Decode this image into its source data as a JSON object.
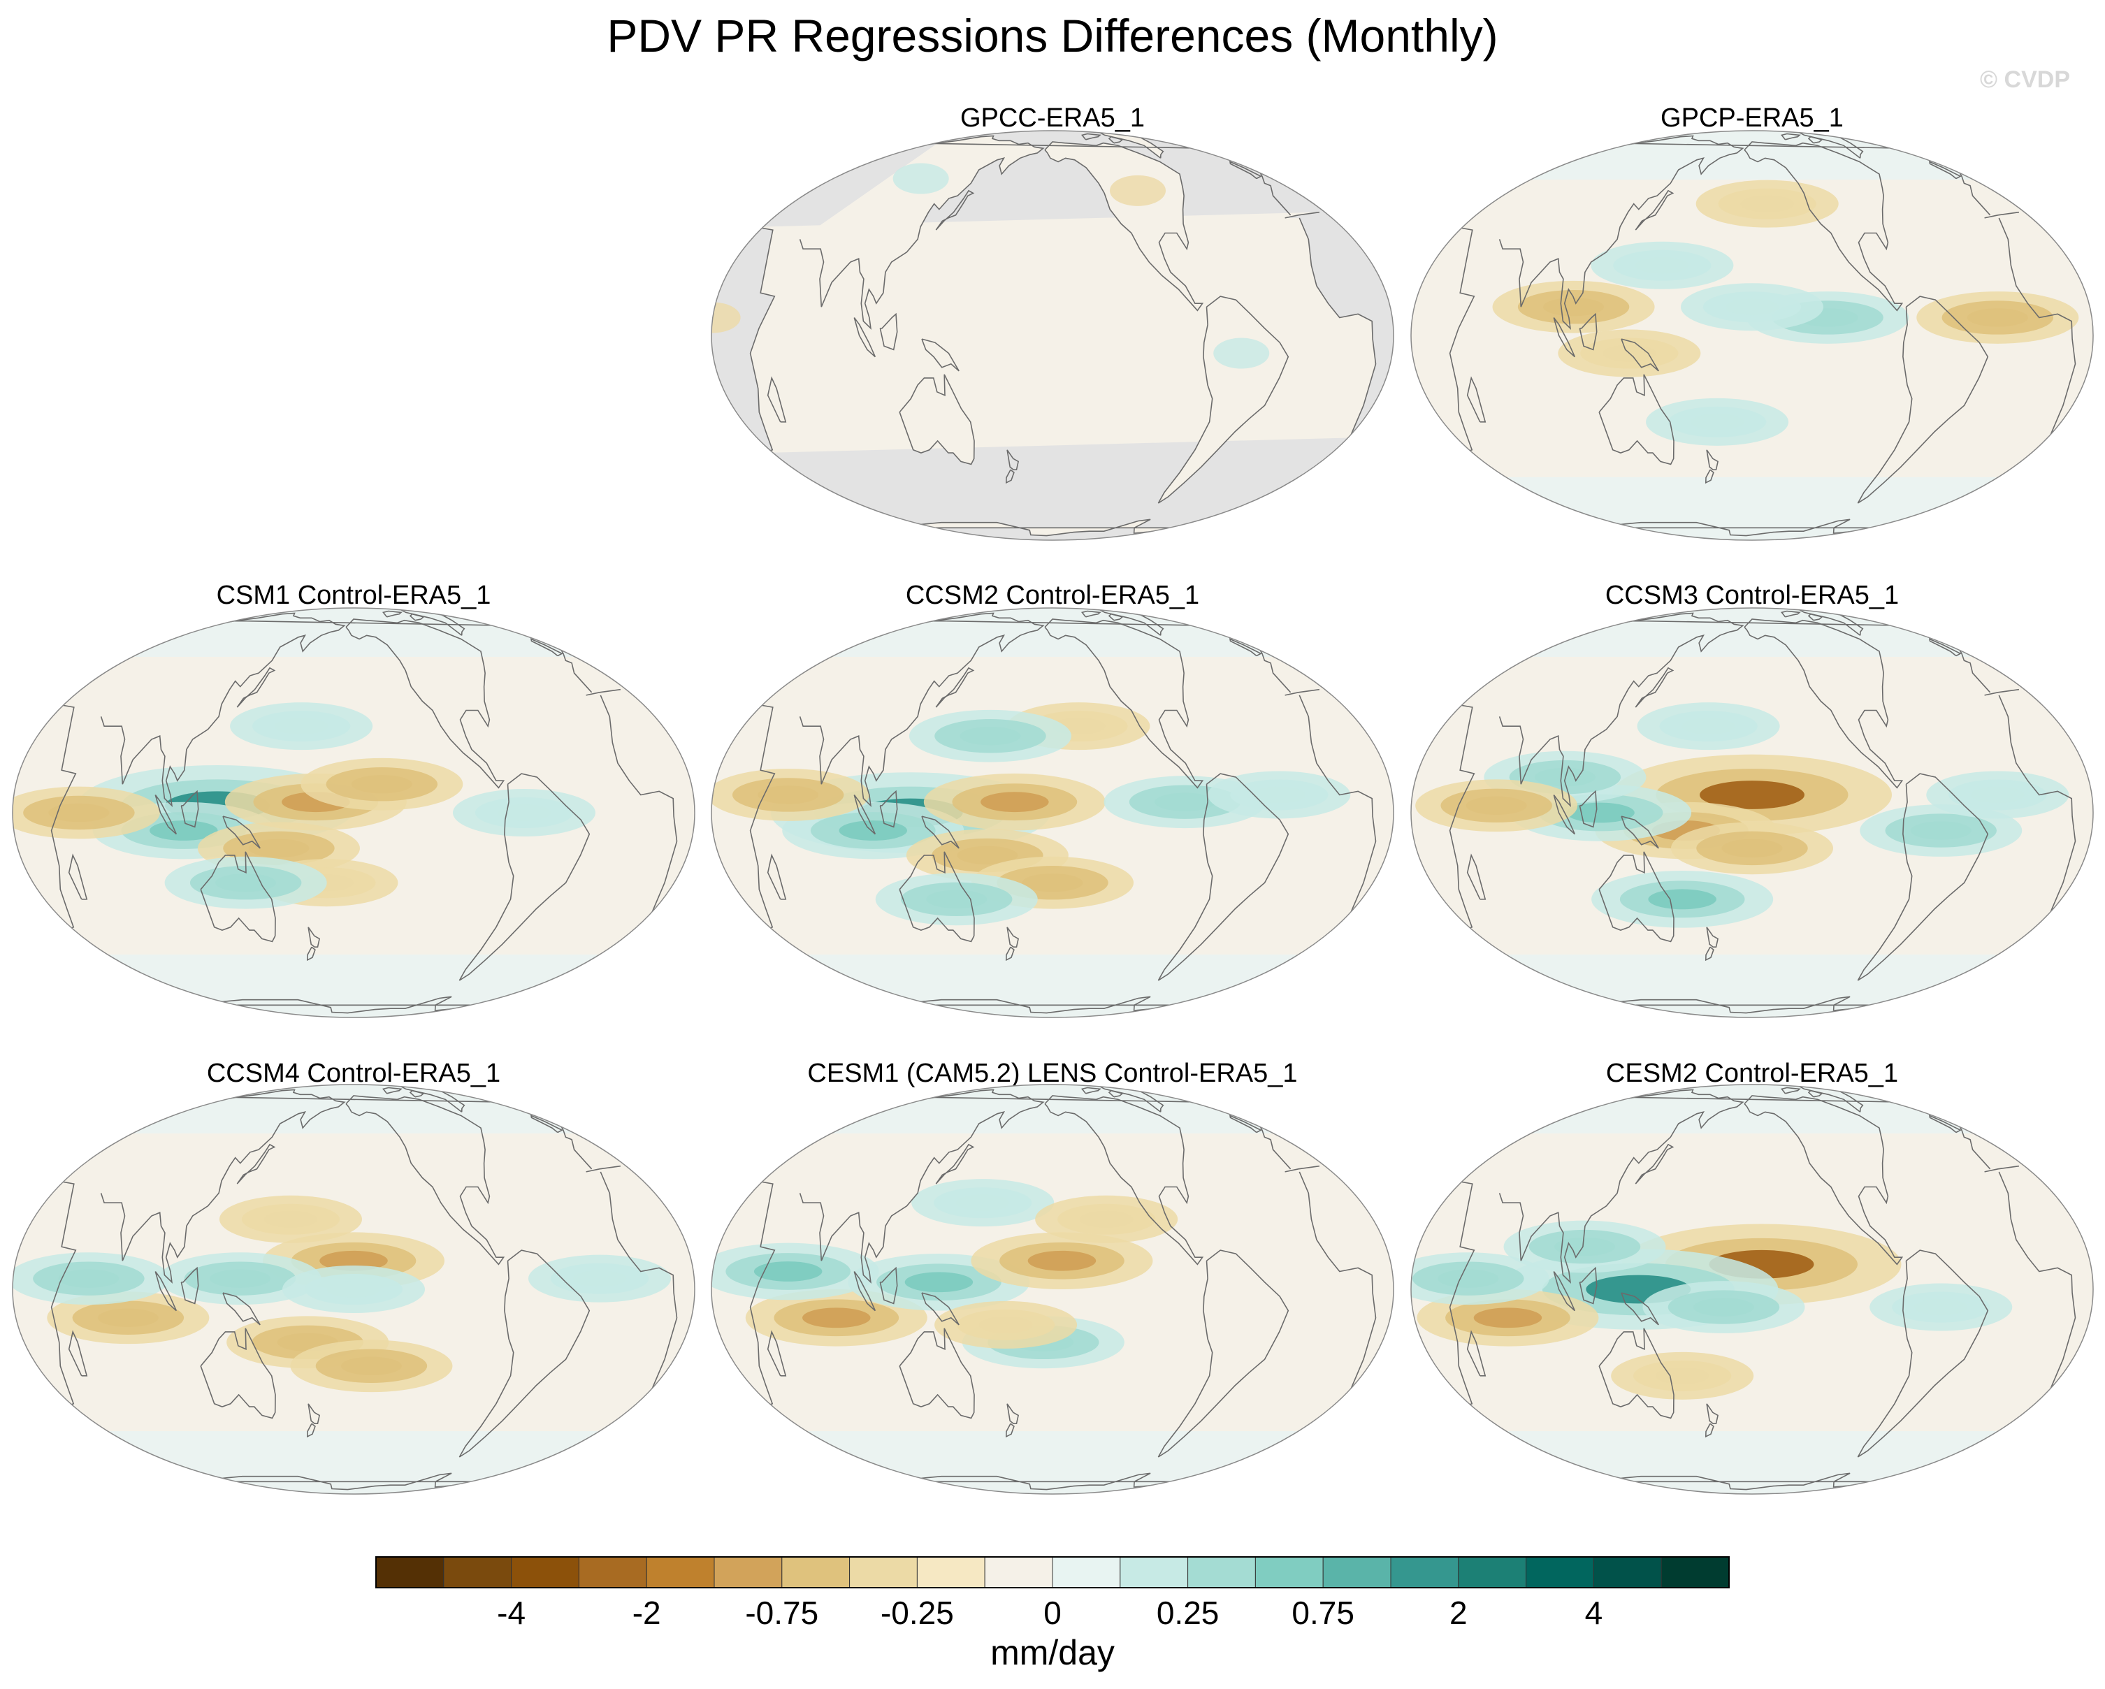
{
  "title": "PDV PR Regressions Differences (Monthly)",
  "watermark": "© CVDP",
  "colorbar": {
    "units": "mm/day",
    "tick_labels": [
      "-4",
      "-2",
      "-0.75",
      "-0.25",
      "0",
      "0.25",
      "0.75",
      "2",
      "4"
    ],
    "colors": [
      "#543005",
      "#7a4a0d",
      "#8c510a",
      "#a86b22",
      "#bf812d",
      "#d2a35a",
      "#dfc27d",
      "#ecdaa6",
      "#f6e8c3",
      "#f5f1e8",
      "#e8f4f2",
      "#c7eae5",
      "#a4dcd3",
      "#80cdc1",
      "#5ab4a9",
      "#35978f",
      "#1c8075",
      "#01665e",
      "#01524a",
      "#003c30"
    ]
  },
  "chart_data": [
    {
      "type": "heatmap",
      "title": "GPCC-ERA5_1",
      "land_only": true,
      "patterns": [
        {
          "lon": 300,
          "lat": -5,
          "value": 0.25
        },
        {
          "lon": 20,
          "lat": 5,
          "value": -0.25
        },
        {
          "lon": 100,
          "lat": 50,
          "value": 0.25
        },
        {
          "lon": 260,
          "lat": 45,
          "value": -0.25
        }
      ]
    },
    {
      "type": "heatmap",
      "title": "GPCP-ERA5_1",
      "patterns": [
        {
          "lon": 240,
          "lat": 5,
          "value": 0.5
        },
        {
          "lon": 200,
          "lat": 8,
          "value": 0.25
        },
        {
          "lon": 330,
          "lat": 5,
          "value": -0.5
        },
        {
          "lon": 105,
          "lat": 8,
          "value": -0.5
        },
        {
          "lon": 150,
          "lat": 20,
          "value": 0.25
        },
        {
          "lon": 210,
          "lat": 40,
          "value": -0.25
        },
        {
          "lon": 180,
          "lat": -25,
          "value": 0.25
        },
        {
          "lon": 135,
          "lat": -5,
          "value": -0.25
        }
      ]
    },
    {
      "type": "heatmap",
      "title": "CSM1 Control-ERA5_1",
      "patterns": [
        {
          "lon": 128,
          "lat": 2,
          "value": 2
        },
        {
          "lon": 110,
          "lat": -5,
          "value": 0.75
        },
        {
          "lon": 180,
          "lat": 3,
          "value": -0.75
        },
        {
          "lon": 215,
          "lat": 8,
          "value": -0.5
        },
        {
          "lon": 160,
          "lat": -10,
          "value": -0.5
        },
        {
          "lon": 185,
          "lat": -20,
          "value": -0.25
        },
        {
          "lon": 55,
          "lat": 0,
          "value": -0.5
        },
        {
          "lon": 140,
          "lat": -20,
          "value": 0.5
        },
        {
          "lon": 170,
          "lat": 25,
          "value": 0.25
        },
        {
          "lon": 290,
          "lat": 0,
          "value": 0.25
        }
      ]
    },
    {
      "type": "heatmap",
      "title": "CCSM2 Control-ERA5_1",
      "patterns": [
        {
          "lon": 125,
          "lat": 0,
          "value": 2
        },
        {
          "lon": 105,
          "lat": -5,
          "value": 0.75
        },
        {
          "lon": 180,
          "lat": 3,
          "value": -0.75
        },
        {
          "lon": 165,
          "lat": -12,
          "value": -0.5
        },
        {
          "lon": 200,
          "lat": -20,
          "value": -0.5
        },
        {
          "lon": 215,
          "lat": 25,
          "value": -0.25
        },
        {
          "lon": 60,
          "lat": 5,
          "value": -0.5
        },
        {
          "lon": 145,
          "lat": -25,
          "value": 0.5
        },
        {
          "lon": 165,
          "lat": 22,
          "value": 0.5
        },
        {
          "lon": 270,
          "lat": 3,
          "value": 0.5
        },
        {
          "lon": 320,
          "lat": 5,
          "value": 0.25
        }
      ]
    },
    {
      "type": "heatmap",
      "title": "CCSM3 Control-ERA5_1",
      "patterns": [
        {
          "lon": 200,
          "lat": 5,
          "value": -2
        },
        {
          "lon": 165,
          "lat": -5,
          "value": -0.75
        },
        {
          "lon": 200,
          "lat": -10,
          "value": -0.5
        },
        {
          "lon": 120,
          "lat": 0,
          "value": 0.75
        },
        {
          "lon": 100,
          "lat": 10,
          "value": 0.5
        },
        {
          "lon": 160,
          "lat": -25,
          "value": 0.75
        },
        {
          "lon": 65,
          "lat": 2,
          "value": -0.5
        },
        {
          "lon": 175,
          "lat": 25,
          "value": 0.25
        },
        {
          "lon": 300,
          "lat": -5,
          "value": 0.5
        },
        {
          "lon": 330,
          "lat": 5,
          "value": 0.25
        }
      ]
    },
    {
      "type": "heatmap",
      "title": "CCSM4 Control-ERA5_1",
      "patterns": [
        {
          "lon": 200,
          "lat": 8,
          "value": -0.75
        },
        {
          "lon": 175,
          "lat": -15,
          "value": -0.5
        },
        {
          "lon": 210,
          "lat": -22,
          "value": -0.5
        },
        {
          "lon": 80,
          "lat": -8,
          "value": -0.5
        },
        {
          "lon": 140,
          "lat": 3,
          "value": 0.5
        },
        {
          "lon": 60,
          "lat": 3,
          "value": 0.5
        },
        {
          "lon": 200,
          "lat": 0,
          "value": 0.25
        },
        {
          "lon": 330,
          "lat": 3,
          "value": 0.25
        },
        {
          "lon": 165,
          "lat": 20,
          "value": -0.25
        }
      ]
    },
    {
      "type": "heatmap",
      "title": "CESM1 (CAM5.2) LENS Control-ERA5_1",
      "patterns": [
        {
          "lon": 85,
          "lat": -8,
          "value": -0.75
        },
        {
          "lon": 140,
          "lat": 2,
          "value": 0.75
        },
        {
          "lon": 60,
          "lat": 5,
          "value": 0.75
        },
        {
          "lon": 205,
          "lat": 8,
          "value": -0.75
        },
        {
          "lon": 195,
          "lat": -15,
          "value": 0.5
        },
        {
          "lon": 175,
          "lat": -10,
          "value": -0.25
        },
        {
          "lon": 160,
          "lat": 25,
          "value": 0.25
        },
        {
          "lon": 230,
          "lat": 20,
          "value": -0.25
        }
      ]
    },
    {
      "type": "heatmap",
      "title": "CESM2 Control-ERA5_1",
      "patterns": [
        {
          "lon": 205,
          "lat": 7,
          "value": -2
        },
        {
          "lon": 140,
          "lat": 0,
          "value": 2
        },
        {
          "lon": 70,
          "lat": -8,
          "value": -0.75
        },
        {
          "lon": 50,
          "lat": 3,
          "value": 0.5
        },
        {
          "lon": 110,
          "lat": 12,
          "value": 0.5
        },
        {
          "lon": 185,
          "lat": -5,
          "value": 0.5
        },
        {
          "lon": 300,
          "lat": -5,
          "value": 0.25
        },
        {
          "lon": 160,
          "lat": -25,
          "value": -0.25
        }
      ]
    }
  ]
}
